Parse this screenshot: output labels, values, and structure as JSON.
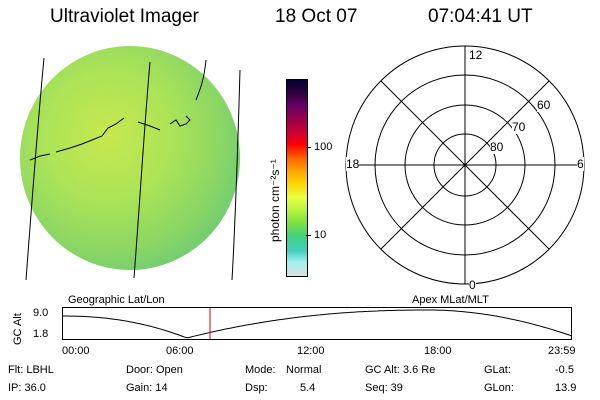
{
  "header": {
    "title": "Ultraviolet Imager",
    "date": "18 Oct 07",
    "time": "07:04:41 UT"
  },
  "colorbar": {
    "unit_label": "photon cm⁻²s⁻¹",
    "ticks": [
      "100",
      "10"
    ],
    "colors": [
      "#000033",
      "#33003f",
      "#660066",
      "#99004c",
      "#cc0033",
      "#ff0000",
      "#ff6600",
      "#ffaa00",
      "#ffd700",
      "#e8ff40",
      "#b4f040",
      "#7de040",
      "#40d080",
      "#40d0c0",
      "#a0f0f0",
      "#e0e0e0"
    ]
  },
  "left_panel": {
    "label": "Geographic Lat/Lon"
  },
  "right_panel": {
    "label": "Apex MLat/MLT",
    "mlt_labels": {
      "top": "12",
      "bottom": "0",
      "left": "18",
      "right": "6"
    },
    "lat_labels": [
      "60",
      "70",
      "80"
    ]
  },
  "altitude_plot": {
    "ylabel": "GC Alt",
    "ymax_label": "9.0",
    "ymin_label": "1.8",
    "xticks": [
      "00:00",
      "06:00",
      "12:00",
      "18:00",
      "23:59"
    ],
    "marker_color": "#dd0000"
  },
  "info": {
    "row1": {
      "flt": "Flt: LBHL",
      "door": "Door: Open",
      "mode_key": "Mode:",
      "mode_val": "Normal",
      "gcalt": "GC Alt: 3.6 Re",
      "glat_key": "GLat:",
      "glat_val": "-0.5"
    },
    "row2": {
      "ip": "IP: 36.0",
      "gain": "Gain: 14",
      "dsp_key": "Dsp:",
      "dsp_val": "5.4",
      "seq": "Seq: 39",
      "glon_key": "GLon:",
      "glon_val": "13.9"
    }
  }
}
